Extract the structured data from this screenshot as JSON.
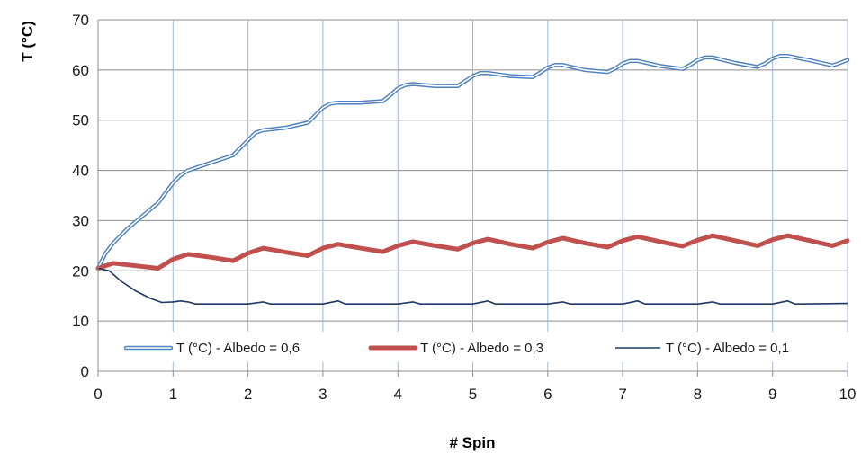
{
  "chart_data": {
    "type": "line",
    "title": "",
    "xlabel": "# Spin",
    "ylabel": "T (°C)",
    "xlim": [
      0,
      10
    ],
    "ylim": [
      0,
      70
    ],
    "x_ticks": [
      "0",
      "1",
      "2",
      "3",
      "4",
      "5",
      "6",
      "7",
      "8",
      "9",
      "10"
    ],
    "y_ticks": [
      "0",
      "10",
      "20",
      "30",
      "40",
      "50",
      "60",
      "70"
    ],
    "grid": "horizontal and vertical",
    "legend_position": "bottom-inside",
    "series": [
      {
        "name": "T (°C) - Albedo = 0,6",
        "color": "#4f81bd",
        "style": "double-line",
        "x": [
          0,
          0.1,
          0.2,
          0.4,
          0.6,
          0.8,
          0.9,
          1.0,
          1.1,
          1.2,
          1.4,
          1.6,
          1.8,
          1.9,
          2.0,
          2.1,
          2.2,
          2.5,
          2.8,
          2.9,
          3.0,
          3.1,
          3.2,
          3.5,
          3.8,
          3.9,
          4.0,
          4.1,
          4.2,
          4.5,
          4.8,
          4.9,
          5.0,
          5.1,
          5.2,
          5.5,
          5.8,
          5.9,
          6.0,
          6.1,
          6.2,
          6.5,
          6.8,
          6.9,
          7.0,
          7.1,
          7.2,
          7.5,
          7.8,
          7.9,
          8.0,
          8.1,
          8.2,
          8.5,
          8.8,
          8.9,
          9.0,
          9.1,
          9.2,
          9.5,
          9.8,
          9.9,
          10.0
        ],
        "y": [
          20.5,
          23.5,
          25.5,
          28.5,
          31.0,
          33.5,
          35.5,
          37.5,
          39.0,
          40.0,
          41.0,
          42.0,
          43.0,
          44.5,
          46.0,
          47.5,
          48.0,
          48.5,
          49.5,
          51.0,
          52.5,
          53.3,
          53.5,
          53.5,
          53.8,
          55.0,
          56.3,
          57.0,
          57.2,
          56.8,
          56.8,
          57.8,
          58.8,
          59.4,
          59.4,
          58.8,
          58.6,
          59.5,
          60.5,
          61.0,
          61.0,
          60.0,
          59.6,
          60.3,
          61.3,
          61.8,
          61.8,
          60.8,
          60.2,
          61.0,
          62.0,
          62.5,
          62.5,
          61.4,
          60.6,
          61.3,
          62.3,
          62.8,
          62.8,
          61.9,
          60.9,
          61.4,
          62.0
        ]
      },
      {
        "name": "T (°C) - Albedo = 0,3",
        "color": "#c0504d",
        "style": "thick",
        "x": [
          0,
          0.2,
          0.5,
          0.8,
          1.0,
          1.2,
          1.5,
          1.8,
          2.0,
          2.2,
          2.5,
          2.8,
          3.0,
          3.2,
          3.5,
          3.8,
          4.0,
          4.2,
          4.5,
          4.8,
          5.0,
          5.2,
          5.5,
          5.8,
          6.0,
          6.2,
          6.5,
          6.8,
          7.0,
          7.2,
          7.5,
          7.8,
          8.0,
          8.2,
          8.5,
          8.8,
          9.0,
          9.2,
          9.5,
          9.8,
          10.0
        ],
        "y": [
          20.5,
          21.5,
          21.0,
          20.5,
          22.3,
          23.3,
          22.7,
          22.0,
          23.5,
          24.5,
          23.7,
          23.0,
          24.5,
          25.3,
          24.5,
          23.8,
          25.0,
          25.8,
          25.0,
          24.3,
          25.5,
          26.3,
          25.3,
          24.5,
          25.7,
          26.5,
          25.5,
          24.7,
          26.0,
          26.8,
          25.8,
          24.9,
          26.1,
          27.0,
          26.0,
          25.0,
          26.2,
          27.0,
          26.0,
          25.0,
          26.0
        ]
      },
      {
        "name": "T (°C) - Albedo = 0,1",
        "color": "#1f3864",
        "style": "thin",
        "x": [
          0,
          0.15,
          0.3,
          0.5,
          0.7,
          0.85,
          1.0,
          1.1,
          1.2,
          1.3,
          2.0,
          2.2,
          2.3,
          3.0,
          3.2,
          3.3,
          4.0,
          4.2,
          4.3,
          5.0,
          5.2,
          5.3,
          6.0,
          6.2,
          6.3,
          7.0,
          7.2,
          7.3,
          8.0,
          8.2,
          8.3,
          9.0,
          9.2,
          9.3,
          10.0
        ],
        "y": [
          20.5,
          20.0,
          18.0,
          16.0,
          14.5,
          13.7,
          13.8,
          14.0,
          13.8,
          13.4,
          13.4,
          13.8,
          13.4,
          13.4,
          14.0,
          13.4,
          13.4,
          13.8,
          13.4,
          13.4,
          14.0,
          13.4,
          13.4,
          13.8,
          13.4,
          13.4,
          14.0,
          13.4,
          13.4,
          13.8,
          13.4,
          13.4,
          14.0,
          13.4,
          13.5
        ]
      }
    ]
  }
}
